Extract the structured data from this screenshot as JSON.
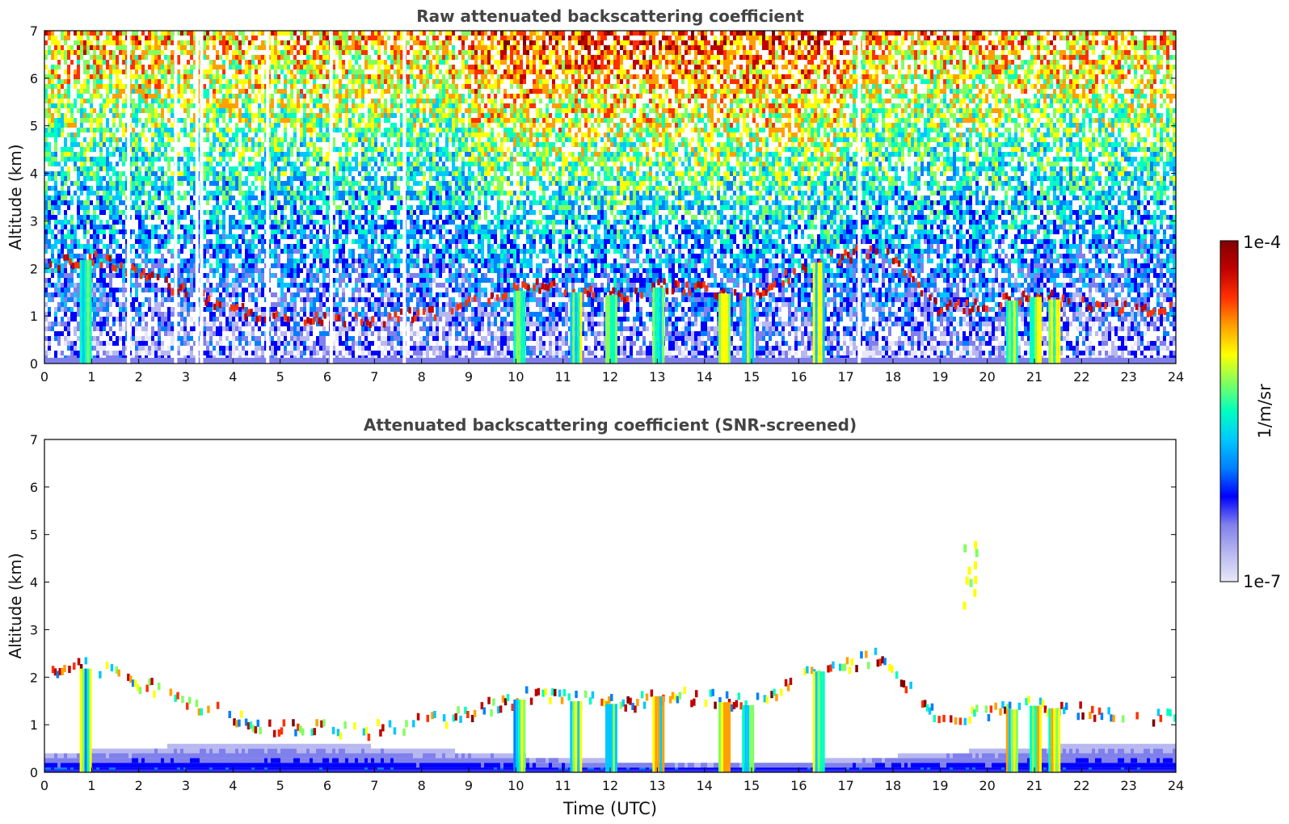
{
  "chart_data": [
    {
      "type": "heatmap",
      "title": "Raw attenuated backscattering coefficient",
      "xlabel": "",
      "ylabel": "Altitude (km)",
      "xlim": [
        0,
        24
      ],
      "ylim": [
        0,
        7
      ],
      "xticks": [
        "0",
        "1",
        "2",
        "3",
        "4",
        "5",
        "6",
        "7",
        "8",
        "9",
        "10",
        "11",
        "12",
        "13",
        "14",
        "15",
        "16",
        "17",
        "18",
        "19",
        "20",
        "21",
        "22",
        "23",
        "24"
      ],
      "yticks": [
        "0",
        "1",
        "2",
        "3",
        "4",
        "5",
        "6",
        "7"
      ],
      "scale": "log",
      "features": {
        "cloud_base_layer_km": [
          {
            "t": 0.2,
            "z": 2.1
          },
          {
            "t": 1.0,
            "z": 2.2
          },
          {
            "t": 4.5,
            "z": 0.95
          },
          {
            "t": 6.8,
            "z": 0.85
          },
          {
            "t": 8.5,
            "z": 1.1
          },
          {
            "t": 10.3,
            "z": 1.6
          },
          {
            "t": 11.2,
            "z": 1.5
          },
          {
            "t": 12.5,
            "z": 1.4
          },
          {
            "t": 13.0,
            "z": 1.6
          },
          {
            "t": 14.2,
            "z": 1.5
          },
          {
            "t": 15.0,
            "z": 1.4
          },
          {
            "t": 16.3,
            "z": 2.1
          },
          {
            "t": 17.7,
            "z": 2.4
          },
          {
            "t": 19.0,
            "z": 1.1
          },
          {
            "t": 21.0,
            "z": 1.4
          },
          {
            "t": 22.5,
            "z": 1.2
          },
          {
            "t": 23.8,
            "z": 1.1
          }
        ],
        "precipitation_shafts_utc": [
          0.85,
          10.05,
          11.25,
          12.0,
          13.0,
          14.4,
          14.9,
          16.4,
          20.5,
          21.0,
          21.4
        ],
        "gap_times_utc": [
          1.75,
          2.75,
          3.2,
          3.3,
          4.7,
          6.05,
          7.6,
          17.25
        ]
      }
    },
    {
      "type": "heatmap",
      "title": "Attenuated backscattering coefficient (SNR-screened)",
      "xlabel": "Time (UTC)",
      "ylabel": "Altitude (km)",
      "xlim": [
        0,
        24
      ],
      "ylim": [
        0,
        7
      ],
      "xticks": [
        "0",
        "1",
        "2",
        "3",
        "4",
        "5",
        "6",
        "7",
        "8",
        "9",
        "10",
        "11",
        "12",
        "13",
        "14",
        "15",
        "16",
        "17",
        "18",
        "19",
        "20",
        "21",
        "22",
        "23",
        "24"
      ],
      "yticks": [
        "0",
        "1",
        "2",
        "3",
        "4",
        "5",
        "6",
        "7"
      ],
      "scale": "log",
      "features": {
        "elevated_feature_19_5utc_km": [
          3.5,
          4.9
        ]
      }
    }
  ],
  "colorbar": {
    "label": "1/m/sr",
    "max_label": "1e-4",
    "min_label": "1e-7",
    "range": [
      1e-07,
      0.0001
    ],
    "colormap": [
      "#e8e8f8",
      "#b8b8f0",
      "#8080ec",
      "#0000ff",
      "#0080ff",
      "#00c8ff",
      "#00ffc0",
      "#80ff60",
      "#ffff00",
      "#ffa000",
      "#ff3000",
      "#c00000",
      "#800000"
    ]
  }
}
